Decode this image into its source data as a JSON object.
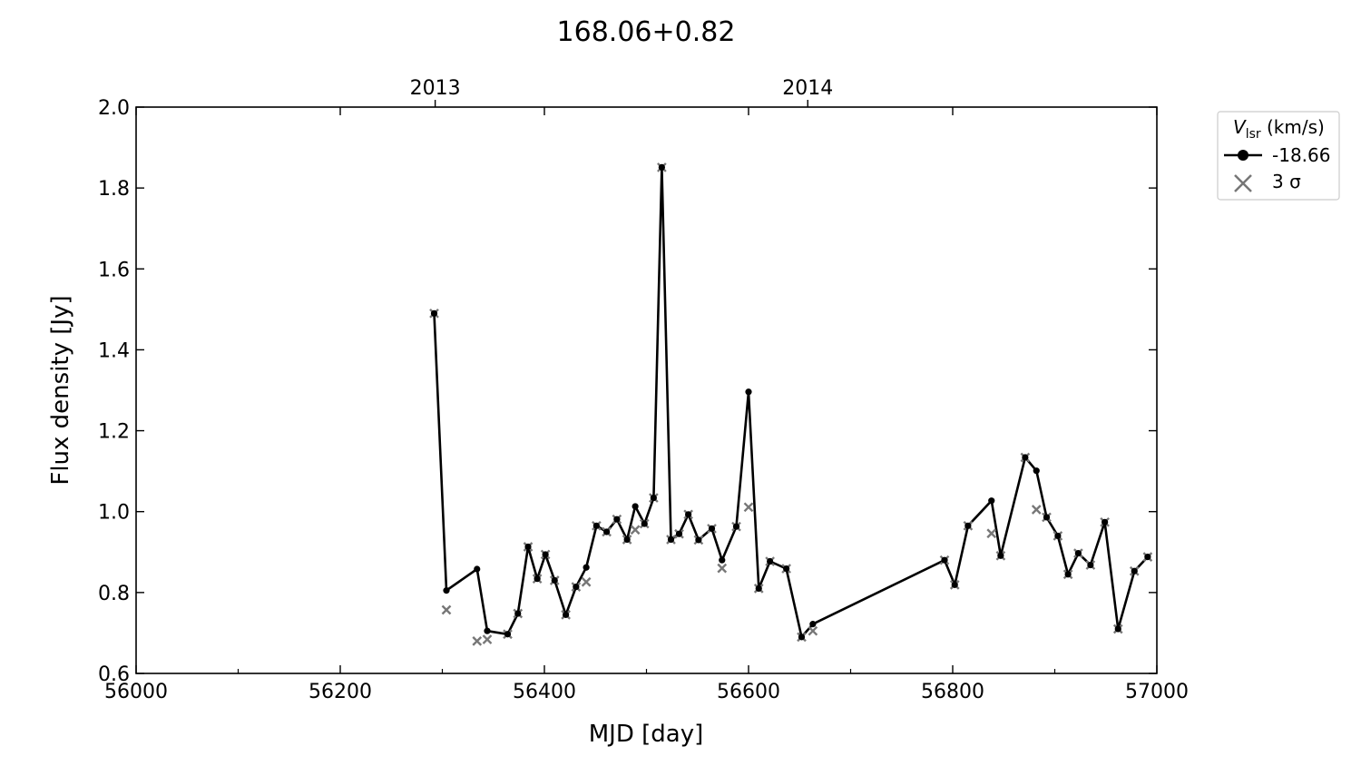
{
  "chart_data": {
    "type": "line",
    "title": "168.06+0.82",
    "xlabel": "MJD [day]",
    "ylabel": "Flux density [Jy]",
    "xlim": [
      56000,
      57000
    ],
    "ylim": [
      0.6,
      2.0
    ],
    "x_major_ticks": [
      56000,
      56200,
      56400,
      56600,
      56800,
      57000
    ],
    "x_minor_ticks": [
      56100,
      56300,
      56500,
      56700,
      56900
    ],
    "x_tick_labels": [
      "56000",
      "56200",
      "56400",
      "56600",
      "56800",
      "57000"
    ],
    "y_ticks": [
      0.6,
      0.8,
      1.0,
      1.2,
      1.4,
      1.6,
      1.8,
      2.0
    ],
    "y_tick_labels": [
      "0.6",
      "0.8",
      "1.0",
      "1.2",
      "1.4",
      "1.6",
      "1.8",
      "2.0"
    ],
    "top_axis": {
      "ticks": [
        56293,
        56658
      ],
      "labels": [
        "2013",
        "2014"
      ]
    },
    "grid": false,
    "legend": {
      "title_symbol": "V",
      "title_subscript": "lsr",
      "title_unit": " (km/s)",
      "placement": "outside-right",
      "entries": [
        "-18.66",
        "3 σ"
      ]
    },
    "colors": {
      "series": "#000000",
      "sigma": "#777777"
    },
    "series": [
      {
        "name": "-18.66",
        "marker": "circle",
        "points": [
          [
            56292,
            1.49
          ],
          [
            56304,
            0.805
          ],
          [
            56334,
            0.858
          ],
          [
            56344,
            0.705
          ],
          [
            56364,
            0.697
          ],
          [
            56374,
            0.748
          ],
          [
            56384,
            0.913
          ],
          [
            56393,
            0.834
          ],
          [
            56401,
            0.894
          ],
          [
            56410,
            0.83
          ],
          [
            56421,
            0.745
          ],
          [
            56431,
            0.814
          ],
          [
            56441,
            0.862
          ],
          [
            56451,
            0.965
          ],
          [
            56461,
            0.95
          ],
          [
            56471,
            0.981
          ],
          [
            56481,
            0.931
          ],
          [
            56489,
            1.013
          ],
          [
            56498,
            0.97
          ],
          [
            56507,
            1.034
          ],
          [
            56515,
            1.851
          ],
          [
            56524,
            0.931
          ],
          [
            56532,
            0.945
          ],
          [
            56541,
            0.993
          ],
          [
            56551,
            0.93
          ],
          [
            56564,
            0.958
          ],
          [
            56574,
            0.88
          ],
          [
            56588,
            0.963
          ],
          [
            56600,
            1.296
          ],
          [
            56610,
            0.81
          ],
          [
            56621,
            0.877
          ],
          [
            56637,
            0.859
          ],
          [
            56652,
            0.69
          ],
          [
            56663,
            0.722
          ],
          [
            56792,
            0.88
          ],
          [
            56802,
            0.819
          ],
          [
            56815,
            0.965
          ],
          [
            56838,
            1.027
          ],
          [
            56847,
            0.891
          ],
          [
            56871,
            1.134
          ],
          [
            56882,
            1.101
          ],
          [
            56892,
            0.986
          ],
          [
            56903,
            0.94
          ],
          [
            56913,
            0.845
          ],
          [
            56923,
            0.897
          ],
          [
            56935,
            0.868
          ],
          [
            56949,
            0.974
          ],
          [
            56962,
            0.71
          ],
          [
            56978,
            0.853
          ],
          [
            56991,
            0.888
          ]
        ]
      },
      {
        "name": "3 σ",
        "marker": "x",
        "points": [
          [
            56292,
            1.49
          ],
          [
            56304,
            0.757
          ],
          [
            56334,
            0.68
          ],
          [
            56344,
            0.684
          ],
          [
            56364,
            0.697
          ],
          [
            56374,
            0.748
          ],
          [
            56384,
            0.913
          ],
          [
            56393,
            0.834
          ],
          [
            56401,
            0.894
          ],
          [
            56410,
            0.83
          ],
          [
            56421,
            0.745
          ],
          [
            56431,
            0.814
          ],
          [
            56441,
            0.826
          ],
          [
            56451,
            0.965
          ],
          [
            56461,
            0.95
          ],
          [
            56471,
            0.981
          ],
          [
            56481,
            0.931
          ],
          [
            56489,
            0.955
          ],
          [
            56498,
            0.97
          ],
          [
            56507,
            1.034
          ],
          [
            56515,
            1.851
          ],
          [
            56524,
            0.931
          ],
          [
            56532,
            0.945
          ],
          [
            56541,
            0.993
          ],
          [
            56551,
            0.93
          ],
          [
            56564,
            0.958
          ],
          [
            56574,
            0.86
          ],
          [
            56588,
            0.963
          ],
          [
            56600,
            1.011
          ],
          [
            56610,
            0.81
          ],
          [
            56621,
            0.877
          ],
          [
            56637,
            0.859
          ],
          [
            56652,
            0.69
          ],
          [
            56663,
            0.705
          ],
          [
            56792,
            0.88
          ],
          [
            56802,
            0.819
          ],
          [
            56815,
            0.965
          ],
          [
            56838,
            0.946
          ],
          [
            56847,
            0.891
          ],
          [
            56871,
            1.134
          ],
          [
            56882,
            1.005
          ],
          [
            56892,
            0.986
          ],
          [
            56903,
            0.94
          ],
          [
            56913,
            0.845
          ],
          [
            56923,
            0.897
          ],
          [
            56935,
            0.868
          ],
          [
            56949,
            0.974
          ],
          [
            56962,
            0.71
          ],
          [
            56978,
            0.853
          ],
          [
            56991,
            0.888
          ]
        ]
      }
    ]
  }
}
